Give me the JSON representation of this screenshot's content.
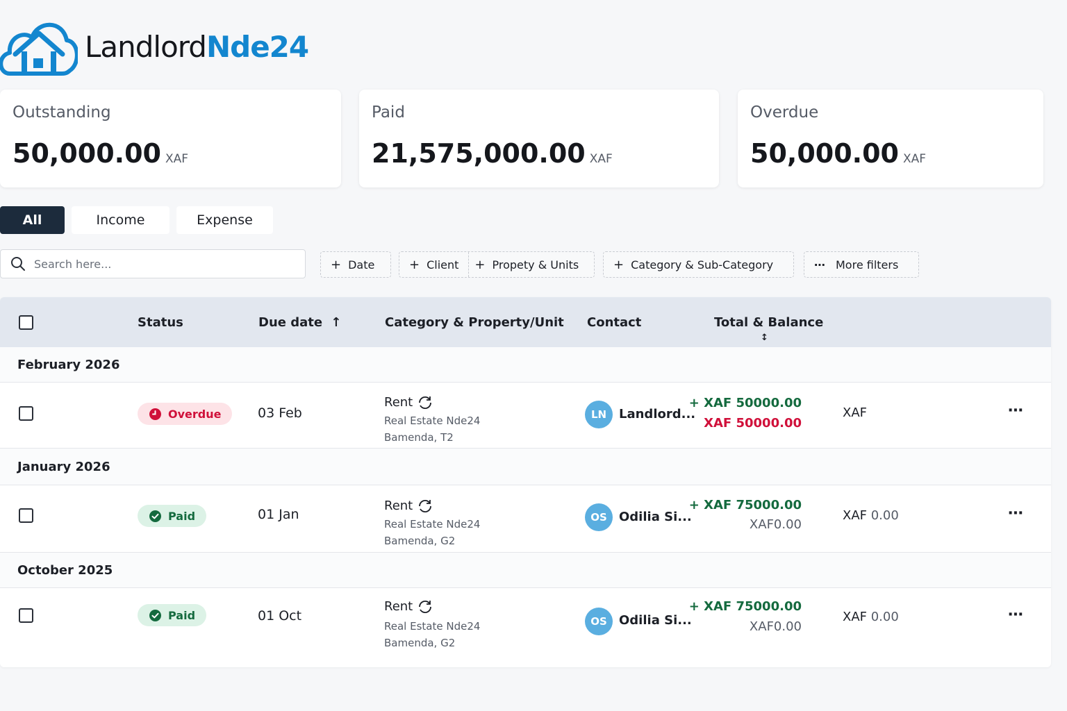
{
  "brand": {
    "name_a": "Landlord",
    "name_b": "Nde24",
    "accent": "#1386cf"
  },
  "summary": [
    {
      "label": "Outstanding",
      "amount": "50,000.00",
      "currency": "XAF"
    },
    {
      "label": "Paid",
      "amount": "21,575,000.00",
      "currency": "XAF"
    },
    {
      "label": "Overdue",
      "amount": "50,000.00",
      "currency": "XAF"
    }
  ],
  "tabs": [
    {
      "label": "All",
      "active": true
    },
    {
      "label": "Income",
      "active": false
    },
    {
      "label": "Expense",
      "active": false
    }
  ],
  "search": {
    "placeholder": "Search here..."
  },
  "filters": {
    "date": "Date",
    "client": "Client",
    "property": "Propety & Units",
    "category": "Category & Sub-Category",
    "more": "More filters"
  },
  "table": {
    "headers": {
      "status": "Status",
      "due_date": "Due date",
      "category": "Category & Property/Unit",
      "contact": "Contact",
      "total": "Total & Balance"
    },
    "groups": [
      {
        "label": "February 2026"
      },
      {
        "label": "January 2026"
      },
      {
        "label": "October 2025"
      }
    ],
    "rows": [
      {
        "status": "Overdue",
        "due": "03 Feb",
        "category": "Rent",
        "property": "Real Estate Nde24",
        "unit": "Bamenda, T2",
        "initials": "LN",
        "contact": "Landlord...",
        "total": "+ XAF 50000.00",
        "balance": "XAF 50000.00",
        "currency": "XAF",
        "balance2": ""
      },
      {
        "status": "Paid",
        "due": "01 Jan",
        "category": "Rent",
        "property": "Real Estate Nde24",
        "unit": "Bamenda, G2",
        "initials": "OS",
        "contact": "Odilia Si...",
        "total": "+ XAF 75000.00",
        "balance": "XAF0.00",
        "currency": "XAF",
        "balance2": "0.00"
      },
      {
        "status": "Paid",
        "due": "01 Oct",
        "category": "Rent",
        "property": "Real Estate Nde24",
        "unit": "Bamenda, G2",
        "initials": "OS",
        "contact": "Odilia Si...",
        "total": "+ XAF 75000.00",
        "balance": "XAF0.00",
        "currency": "XAF",
        "balance2": "0.00"
      }
    ],
    "more_icon": "⋯"
  },
  "colors": {
    "overdue": "#d0103a",
    "paid": "#146a3e",
    "header_bg": "#e2e7ef",
    "active_tab": "#1c2b3c"
  }
}
